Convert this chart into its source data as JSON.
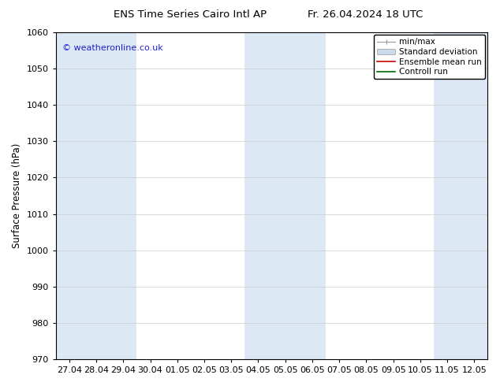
{
  "title_left": "ENS Time Series Cairo Intl AP",
  "title_right": "Fr. 26.04.2024 18 UTC",
  "ylabel": "Surface Pressure (hPa)",
  "ylim": [
    970,
    1060
  ],
  "yticks": [
    970,
    980,
    990,
    1000,
    1010,
    1020,
    1030,
    1040,
    1050,
    1060
  ],
  "x_labels": [
    "27.04",
    "28.04",
    "29.04",
    "30.04",
    "01.05",
    "02.05",
    "03.05",
    "04.05",
    "05.05",
    "06.05",
    "07.05",
    "08.05",
    "09.05",
    "10.05",
    "11.05",
    "12.05"
  ],
  "watermark": "© weatheronline.co.uk",
  "watermark_color": "#2222cc",
  "bg_color": "#ffffff",
  "plot_bg_color": "#ffffff",
  "band_color": "#dce9f5",
  "legend_labels": [
    "min/max",
    "Standard deviation",
    "Ensemble mean run",
    "Controll run"
  ],
  "shaded_columns": [
    0,
    1,
    2,
    7,
    8,
    9,
    14,
    15
  ],
  "grid_color": "#cccccc",
  "tick_color": "#000000",
  "font_color": "#000000",
  "title_fontsize": 9.5,
  "axis_fontsize": 8,
  "watermark_fontsize": 8,
  "legend_fontsize": 7.5
}
